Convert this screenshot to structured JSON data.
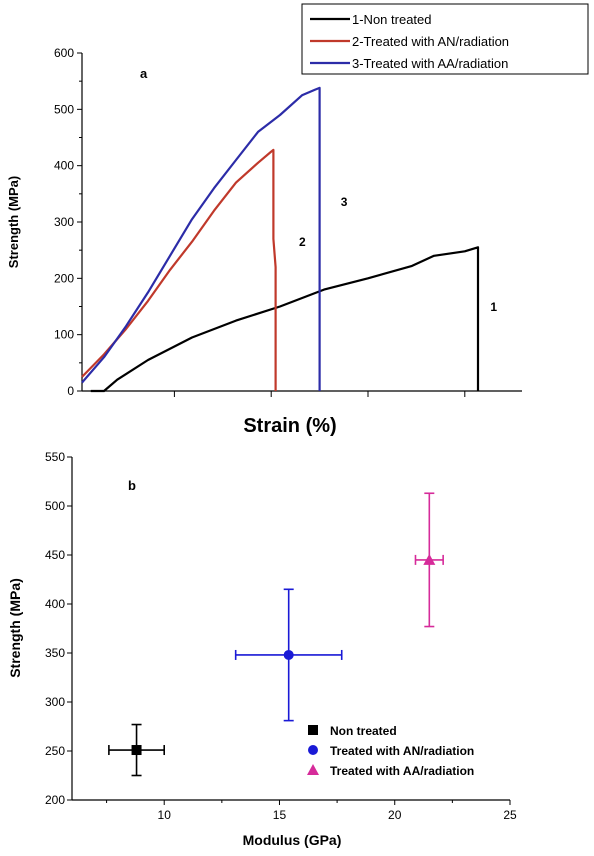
{
  "chart_data": [
    {
      "panel_label": "a",
      "type": "line",
      "xlabel": "Strain (%)",
      "ylabel": "Strength (MPa)",
      "ylim": [
        0,
        600
      ],
      "yticks": [
        0,
        100,
        200,
        300,
        400,
        500,
        600
      ],
      "x_tick_labels_shown": false,
      "x_domain": [
        0,
        1
      ],
      "grid": false,
      "legend_position": "top-right",
      "series": [
        {
          "name": "1-Non treated",
          "curve_label": "1",
          "color": "#000000",
          "points": [
            [
              0.02,
              0
            ],
            [
              0.05,
              0
            ],
            [
              0.08,
              20
            ],
            [
              0.15,
              55
            ],
            [
              0.25,
              95
            ],
            [
              0.35,
              125
            ],
            [
              0.45,
              150
            ],
            [
              0.55,
              180
            ],
            [
              0.65,
              200
            ],
            [
              0.75,
              222
            ],
            [
              0.8,
              240
            ],
            [
              0.87,
              248
            ],
            [
              0.9,
              255
            ],
            [
              0.9,
              0
            ]
          ]
        },
        {
          "name": "2-Treated with AN/radiation",
          "curve_label": "2",
          "color": "#c0392b",
          "points": [
            [
              0,
              25
            ],
            [
              0.05,
              65
            ],
            [
              0.1,
              110
            ],
            [
              0.15,
              160
            ],
            [
              0.2,
              215
            ],
            [
              0.25,
              265
            ],
            [
              0.3,
              320
            ],
            [
              0.35,
              370
            ],
            [
              0.4,
              405
            ],
            [
              0.43,
              425
            ],
            [
              0.435,
              428
            ],
            [
              0.435,
              270
            ],
            [
              0.44,
              220
            ],
            [
              0.44,
              0
            ]
          ]
        },
        {
          "name": "3-Treated with AA/radiation",
          "curve_label": "3",
          "color": "#2c2ca8",
          "points": [
            [
              0,
              15
            ],
            [
              0.05,
              60
            ],
            [
              0.1,
              115
            ],
            [
              0.15,
              175
            ],
            [
              0.2,
              240
            ],
            [
              0.25,
              305
            ],
            [
              0.3,
              360
            ],
            [
              0.35,
              410
            ],
            [
              0.4,
              460
            ],
            [
              0.45,
              490
            ],
            [
              0.5,
              525
            ],
            [
              0.53,
              535
            ],
            [
              0.54,
              538
            ],
            [
              0.54,
              0
            ]
          ]
        }
      ]
    },
    {
      "panel_label": "b",
      "type": "scatter",
      "xlabel": "Modulus (GPa)",
      "ylabel": "Strength (MPa)",
      "xlim": [
        6,
        25
      ],
      "ylim": [
        200,
        550
      ],
      "xticks": [
        10,
        15,
        20,
        25
      ],
      "yticks": [
        200,
        250,
        300,
        350,
        400,
        450,
        500,
        550
      ],
      "grid": false,
      "legend_position": "bottom-right",
      "series": [
        {
          "name": "Non treated",
          "marker": "square",
          "color": "#000000",
          "x": 8.8,
          "y": 251,
          "x_err": 1.2,
          "y_err": 26
        },
        {
          "name": "Treated with AN/radiation",
          "marker": "circle",
          "color": "#1a1ad6",
          "x": 15.4,
          "y": 348,
          "x_err": 2.3,
          "y_err": 67
        },
        {
          "name": "Treated with AA/radiation",
          "marker": "triangle",
          "color": "#d62b9a",
          "x": 21.5,
          "y": 445,
          "x_err": 0.6,
          "y_err": 68
        }
      ]
    }
  ]
}
